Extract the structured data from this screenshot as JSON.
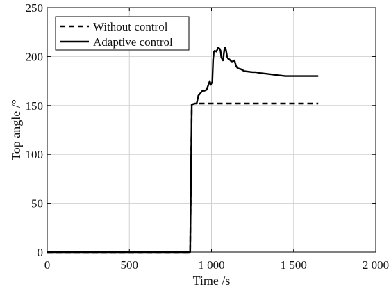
{
  "chart_data": {
    "type": "line",
    "title": "",
    "xlabel": "Time /s",
    "ylabel": "Top angle /°",
    "xlim": [
      0,
      2000
    ],
    "ylim": [
      0,
      250
    ],
    "x_ticks": [
      0,
      500,
      1000,
      1500,
      2000
    ],
    "x_tick_labels": [
      "0",
      "500",
      "1 000",
      "1 500",
      "2 000"
    ],
    "y_ticks": [
      0,
      50,
      100,
      150,
      200,
      250
    ],
    "y_tick_labels": [
      "0",
      "50",
      "100",
      "150",
      "200",
      "250"
    ],
    "grid": true,
    "legend_position": "top-left",
    "series": [
      {
        "name": "Without control",
        "style": "dashed",
        "color": "#000000",
        "x": [
          0,
          870,
          880,
          900,
          1000,
          1200,
          1400,
          1650
        ],
        "y": [
          0,
          0,
          151,
          152,
          152,
          152,
          152,
          152
        ]
      },
      {
        "name": "Adaptive control",
        "style": "solid",
        "color": "#000000",
        "x": [
          0,
          870,
          880,
          900,
          910,
          915,
          920,
          935,
          945,
          955,
          970,
          990,
          995,
          1005,
          1010,
          1015,
          1020,
          1030,
          1040,
          1050,
          1055,
          1060,
          1070,
          1080,
          1085,
          1090,
          1095,
          1100,
          1110,
          1120,
          1130,
          1140,
          1150,
          1160,
          1180,
          1200,
          1250,
          1270,
          1300,
          1350,
          1400,
          1450,
          1500,
          1550,
          1600,
          1650
        ],
        "y": [
          0,
          0,
          151,
          152,
          152,
          156,
          160,
          163,
          165,
          165,
          166,
          175,
          171,
          174,
          197,
          205,
          206,
          205,
          209,
          208,
          206,
          199,
          196,
          209,
          209,
          205,
          200,
          198,
          197,
          195,
          195,
          196,
          190,
          188,
          187,
          185,
          184,
          184,
          183,
          182,
          181,
          180,
          180,
          180,
          180,
          180
        ]
      }
    ]
  }
}
